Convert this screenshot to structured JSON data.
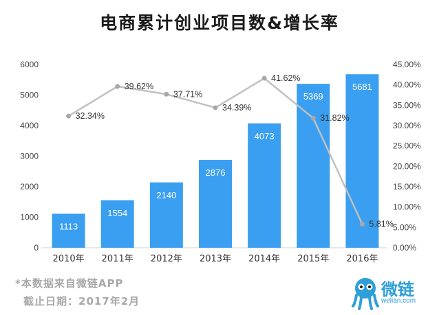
{
  "chart_data": {
    "type": "bar",
    "title": "电商累计创业项目数&增长率",
    "categories": [
      "2010年",
      "2011年",
      "2012年",
      "2013年",
      "2014年",
      "2015年",
      "2016年"
    ],
    "bar_values": [
      1113,
      1554,
      2140,
      2876,
      4073,
      5369,
      5681
    ],
    "bar_labels": [
      "1113",
      "1554",
      "2140",
      "2876",
      "4073",
      "5369",
      "5681"
    ],
    "line_values": [
      32.34,
      39.62,
      37.71,
      34.39,
      41.62,
      31.82,
      5.81
    ],
    "line_labels": [
      "32.34%",
      "39.62%",
      "37.71%",
      "34.39%",
      "41.62%",
      "31.82%",
      "5.81%"
    ],
    "y_left": {
      "ylim": [
        0,
        6000
      ],
      "ticks": [
        "0",
        "1000",
        "2000",
        "3000",
        "4000",
        "5000",
        "6000"
      ]
    },
    "y_right": {
      "ylim": [
        0,
        45
      ],
      "ticks": [
        "0.00%",
        "5.00%",
        "10.00%",
        "15.00%",
        "20.00%",
        "25.00%",
        "30.00%",
        "35.00%",
        "40.00%",
        "45.00%"
      ]
    },
    "grid": false,
    "colors": {
      "bar": "#3a9ff0",
      "line": "#c0c0c0",
      "point": "#a9a9a9",
      "bar_label": "#ffffff"
    }
  },
  "footer": {
    "source": "*本数据来自微链APP",
    "date": "截止日期：2017年2月"
  },
  "brand": {
    "name": "微链",
    "url": "welian.com",
    "logo_icon": "octopus-mascot-icon"
  }
}
